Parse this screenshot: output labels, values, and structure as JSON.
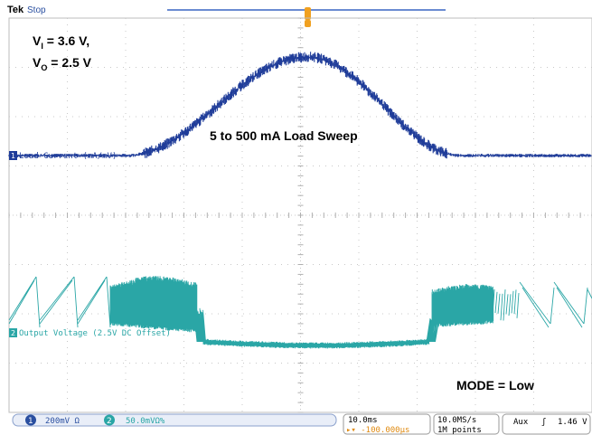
{
  "header": {
    "brand": "Tek",
    "state": "Stop"
  },
  "annotations": {
    "vi_main": "V",
    "vi_sub": "I",
    "vi_value": " = 3.6 V,",
    "vo_main": "V",
    "vo_sub": "O",
    "vo_value": " = 2.5 V",
    "sweep": "5 to 500 mA Load Sweep",
    "mode": "MODE = Low"
  },
  "channels": {
    "ch1": {
      "marker": "1",
      "label": "Load Current (mA/mV)",
      "color": "#1f3c99"
    },
    "ch2": {
      "marker": "2",
      "label": "Output Voltage (2.5V DC Offset)",
      "color": "#2aa6a6"
    }
  },
  "status_bar": {
    "ch1_num": "1",
    "ch1_scale": "200mV Ω",
    "ch2_num": "2",
    "ch2_scale": "50.0mVΩ%",
    "timebase": "10.0ms",
    "delay": "▸▾ -100.000μs",
    "sample_rate": "10.0MS/s",
    "record": "1M points",
    "trigger_src": "Aux",
    "trigger_slope": "ʃ",
    "trigger_level": "1.46 V"
  },
  "chart_data": {
    "type": "line",
    "title": "",
    "xlabel": "",
    "ylabel": "",
    "x_unit_per_div": "10.0ms",
    "x_divisions": 10,
    "y_divisions": 8,
    "grid": true,
    "series": [
      {
        "name": "Load Current (mA/mV)",
        "description_values_mA": {
          "min": 5,
          "max": 500
        },
        "x_div": [
          0,
          1.0,
          2.0,
          3.0,
          4.0,
          5.0,
          6.0,
          7.0,
          8.0,
          9.0,
          10.0
        ],
        "y_mA": [
          5,
          5,
          5,
          150,
          420,
          500,
          420,
          150,
          5,
          5,
          5
        ]
      },
      {
        "name": "Output Voltage (2.5V DC Offset)",
        "x_div": [
          0,
          1.0,
          2.0,
          3.0,
          3.3,
          4.0,
          5.0,
          6.0,
          7.0,
          7.3,
          8.0,
          9.0,
          10.0
        ],
        "y_div": [
          1.5,
          1.5,
          1.5,
          1.3,
          -1.8,
          -1.9,
          -2.0,
          -1.9,
          -1.8,
          1.3,
          1.5,
          1.5,
          1.5
        ]
      }
    ]
  }
}
